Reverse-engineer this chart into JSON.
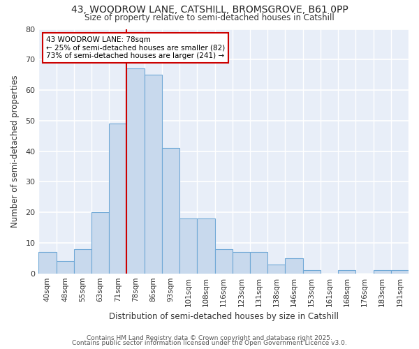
{
  "title_line1": "43, WOODROW LANE, CATSHILL, BROMSGROVE, B61 0PP",
  "title_line2": "Size of property relative to semi-detached houses in Catshill",
  "xlabel": "Distribution of semi-detached houses by size in Catshill",
  "ylabel": "Number of semi-detached properties",
  "categories": [
    "40sqm",
    "48sqm",
    "55sqm",
    "63sqm",
    "71sqm",
    "78sqm",
    "86sqm",
    "93sqm",
    "101sqm",
    "108sqm",
    "116sqm",
    "123sqm",
    "131sqm",
    "138sqm",
    "146sqm",
    "153sqm",
    "161sqm",
    "168sqm",
    "176sqm",
    "183sqm",
    "191sqm"
  ],
  "values": [
    7,
    4,
    8,
    20,
    49,
    67,
    65,
    41,
    18,
    18,
    8,
    7,
    7,
    3,
    5,
    1,
    0,
    1,
    0,
    1,
    1
  ],
  "bar_color": "#c8d9ed",
  "bar_edge_color": "#6fa8d6",
  "highlight_color": "#cc0000",
  "annotation_title": "43 WOODROW LANE: 78sqm",
  "annotation_line2": "← 25% of semi-detached houses are smaller (82)",
  "annotation_line3": "73% of semi-detached houses are larger (241) →",
  "annotation_box_color": "#cc0000",
  "ylim": [
    0,
    80
  ],
  "yticks": [
    0,
    10,
    20,
    30,
    40,
    50,
    60,
    70,
    80
  ],
  "footer_line1": "Contains HM Land Registry data © Crown copyright and database right 2025.",
  "footer_line2": "Contains public sector information licensed under the Open Government Licence v3.0.",
  "background_color": "#ffffff",
  "plot_bg_color": "#e8eef8",
  "grid_color": "#ffffff"
}
